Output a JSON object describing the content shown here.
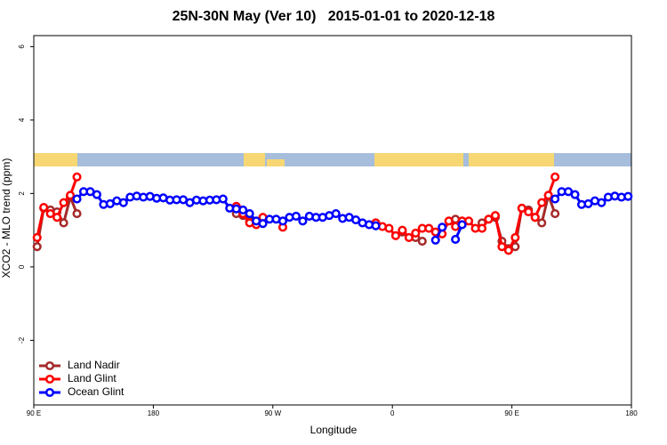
{
  "chart_data": {
    "type": "line",
    "title": "25N-30N May (Ver 10)   2015-01-01 to 2020-12-18",
    "x_label": "Longitude",
    "y_label": "XCO2 - MLO trend (ppm)",
    "x": [
      92.5,
      97.5,
      102.5,
      107.5,
      112.5,
      117.5,
      122.5,
      127.5,
      132.5,
      137.5,
      142.5,
      147.5,
      152.5,
      157.5,
      162.5,
      167.5,
      172.5,
      177.5,
      182.5,
      187.5,
      192.5,
      197.5,
      202.5,
      207.5,
      212.5,
      217.5,
      222.5,
      227.5,
      232.5,
      237.5,
      242.5,
      247.5,
      252.5,
      257.5,
      262.5,
      267.5,
      272.5,
      277.5,
      282.5,
      287.5,
      292.5,
      297.5,
      302.5,
      307.5,
      312.5,
      317.5,
      322.5,
      327.5,
      332.5,
      337.5,
      342.5,
      347.5,
      352.5,
      357.5,
      362.5,
      367.5,
      372.5,
      377.5,
      382.5,
      387.5,
      392.5,
      397.5,
      402.5,
      407.5,
      412.5,
      417.5,
      422.5,
      427.5,
      432.5,
      437.5,
      442.5,
      447.5,
      452.5,
      457.5,
      462.5,
      467.5,
      472.5,
      477.5,
      482.5,
      487.5,
      492.5,
      497.5,
      502.5,
      507.5,
      512.5,
      517.5,
      522.5,
      527.5,
      532.5,
      537.5
    ],
    "series": [
      {
        "name": "Land Nadir",
        "color": "#a52a2a",
        "values": [
          0.55,
          1.6,
          1.55,
          1.5,
          1.2,
          1.9,
          1.45,
          null,
          null,
          null,
          null,
          null,
          null,
          null,
          null,
          null,
          null,
          null,
          null,
          null,
          null,
          null,
          null,
          null,
          null,
          null,
          null,
          null,
          null,
          null,
          1.45,
          1.4,
          1.25,
          null,
          null,
          null,
          null,
          null,
          null,
          null,
          null,
          null,
          null,
          null,
          null,
          null,
          null,
          null,
          null,
          null,
          null,
          1.2,
          null,
          null,
          null,
          0.95,
          null,
          0.8,
          0.7,
          null,
          null,
          null,
          null,
          1.3,
          null,
          null,
          null,
          1.2,
          1.3,
          1.35,
          0.7,
          0.5,
          0.55,
          1.6,
          1.55,
          1.35,
          1.2,
          1.95,
          1.45,
          null,
          null,
          null,
          null,
          null,
          null,
          null,
          null,
          null,
          null,
          null
        ]
      },
      {
        "name": "Land Glint",
        "color": "#ff0000",
        "values": [
          0.8,
          1.62,
          1.45,
          1.35,
          1.75,
          1.95,
          2.45,
          null,
          null,
          null,
          null,
          null,
          null,
          null,
          null,
          null,
          null,
          null,
          null,
          null,
          null,
          null,
          null,
          null,
          null,
          null,
          null,
          null,
          null,
          null,
          1.65,
          1.45,
          1.2,
          1.15,
          1.35,
          null,
          null,
          1.08,
          null,
          null,
          null,
          null,
          null,
          null,
          null,
          null,
          null,
          null,
          null,
          null,
          null,
          1.2,
          1.1,
          1.05,
          0.85,
          1.0,
          0.8,
          0.92,
          1.05,
          1.05,
          0.95,
          0.9,
          1.25,
          1.1,
          1.25,
          1.25,
          1.05,
          1.05,
          1.3,
          1.4,
          0.55,
          0.45,
          0.8,
          1.6,
          1.5,
          1.35,
          1.75,
          1.95,
          2.45,
          null,
          null,
          null,
          null,
          null,
          null,
          null,
          null,
          null,
          null,
          null
        ]
      },
      {
        "name": "Ocean Glint",
        "color": "#0000ff",
        "values": [
          null,
          null,
          null,
          null,
          null,
          null,
          1.85,
          2.05,
          2.05,
          1.97,
          1.7,
          1.72,
          1.8,
          1.75,
          1.9,
          1.93,
          1.9,
          1.92,
          1.87,
          1.88,
          1.82,
          1.83,
          1.83,
          1.75,
          1.82,
          1.8,
          1.82,
          1.83,
          1.85,
          1.6,
          1.58,
          1.55,
          1.45,
          1.25,
          1.18,
          1.3,
          1.3,
          1.25,
          1.35,
          1.38,
          1.25,
          1.38,
          1.35,
          1.35,
          1.4,
          1.45,
          1.32,
          1.35,
          1.28,
          1.2,
          1.15,
          1.12,
          null,
          null,
          null,
          null,
          null,
          null,
          null,
          null,
          0.73,
          1.08,
          null,
          0.75,
          1.15,
          null,
          null,
          null,
          null,
          null,
          null,
          null,
          null,
          null,
          null,
          null,
          null,
          null,
          1.85,
          2.05,
          2.05,
          1.97,
          1.7,
          1.72,
          1.8,
          1.75,
          1.9,
          1.93,
          1.9,
          1.92
        ]
      }
    ],
    "xlim": [
      90,
      540
    ],
    "xticks": [
      {
        "value": 90,
        "label": "90 E"
      },
      180,
      {
        "value": 270,
        "label": "90 W"
      },
      {
        "value": 360,
        "label": "0"
      },
      {
        "value": 450,
        "label": "90 E"
      },
      {
        "value": 540,
        "label": "180"
      }
    ],
    "ylim": [
      -3.76,
      6.3
    ],
    "yticks": [
      -2,
      0,
      2,
      4,
      6
    ],
    "legend": "lower left"
  }
}
